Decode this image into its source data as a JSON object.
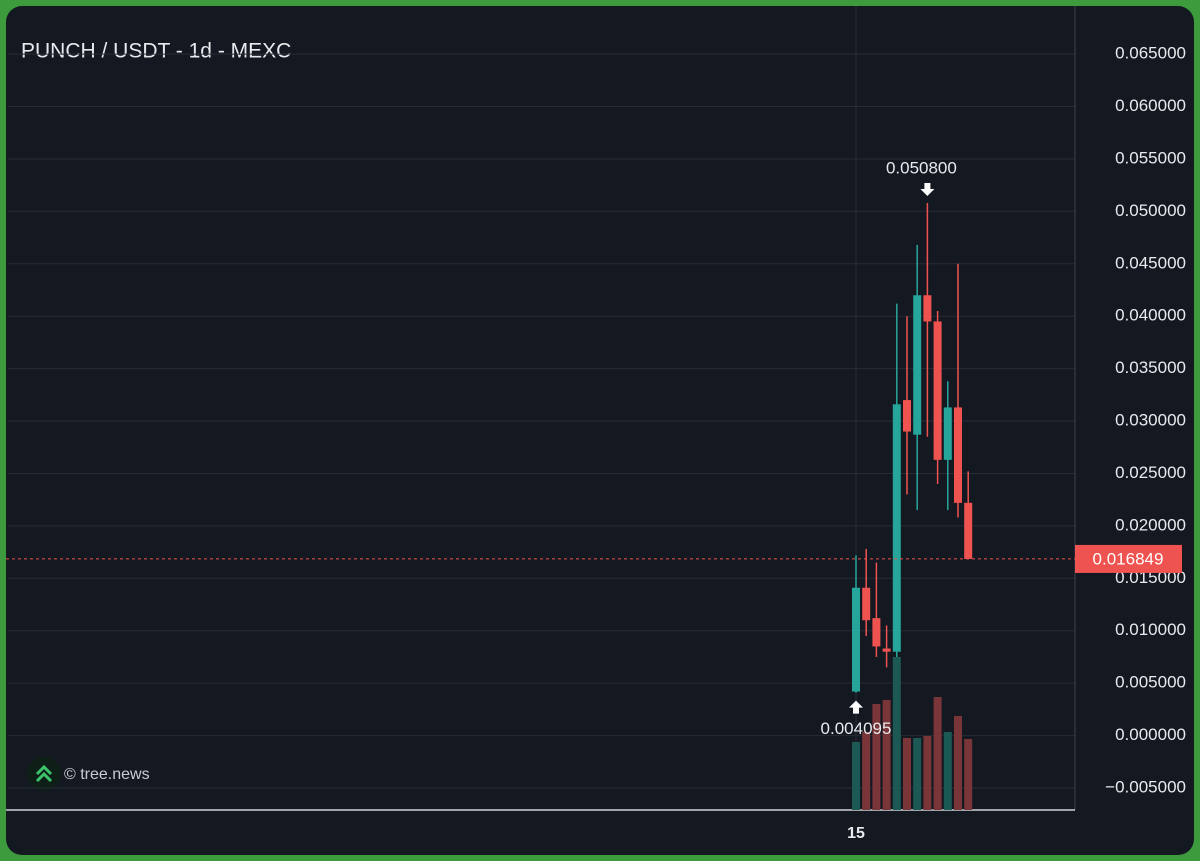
{
  "chart_data": {
    "type": "candlestick",
    "title": "PUNCH / USDT - 1d - MEXC",
    "watermark": "© tree.news",
    "categories": [
      "15",
      null,
      null,
      null,
      null,
      null,
      null,
      null,
      null,
      null,
      null,
      null
    ],
    "open": [
      0.0042,
      0.0141,
      0.0112,
      0.0083,
      0.008,
      0.032,
      0.0287,
      0.042,
      0.0395,
      0.0263,
      0.0313,
      0.0222
    ],
    "high": [
      0.0172,
      0.0178,
      0.0165,
      0.0105,
      0.0412,
      0.04,
      0.0468,
      0.0508,
      0.0405,
      0.0338,
      0.045,
      0.0252
    ],
    "low": [
      0.004095,
      0.0095,
      0.0075,
      0.0065,
      0.0075,
      0.023,
      0.0215,
      0.0285,
      0.024,
      0.0215,
      0.0208,
      0.0168
    ],
    "close": [
      0.0141,
      0.011,
      0.0085,
      0.008,
      0.0316,
      0.029,
      0.042,
      0.0395,
      0.0263,
      0.0313,
      0.0222,
      0.016849
    ],
    "volume": [
      68,
      78,
      106,
      110,
      153,
      72,
      72,
      74,
      113,
      78,
      94,
      71
    ],
    "up_color": "#26a69a",
    "down_color": "#ef5350",
    "up_volume_color": "#1d5954",
    "down_volume_color": "#7a3538",
    "ylim": [
      -0.0071,
      0.0694
    ],
    "yticks": [
      {
        "value": -0.005,
        "label": "−0.005000"
      },
      {
        "value": 0,
        "label": "0.000000"
      },
      {
        "value": 0.005,
        "label": "0.005000"
      },
      {
        "value": 0.01,
        "label": "0.010000"
      },
      {
        "value": 0.015,
        "label": "0.015000"
      },
      {
        "value": 0.02,
        "label": "0.020000"
      },
      {
        "value": 0.025,
        "label": "0.025000"
      },
      {
        "value": 0.03,
        "label": "0.030000"
      },
      {
        "value": 0.035,
        "label": "0.035000"
      },
      {
        "value": 0.04,
        "label": "0.040000"
      },
      {
        "value": 0.045,
        "label": "0.045000"
      },
      {
        "value": 0.05,
        "label": "0.050000"
      },
      {
        "value": 0.055,
        "label": "0.055000"
      },
      {
        "value": 0.06,
        "label": "0.060000"
      },
      {
        "value": 0.065,
        "label": "0.065000"
      }
    ],
    "grid": true,
    "price_line": {
      "value": 0.016849,
      "label": "0.016849"
    },
    "high_annotation": {
      "value": 0.0508,
      "label": "0.050800"
    },
    "low_annotation": {
      "value": 0.004095,
      "label": "0.004095"
    }
  }
}
